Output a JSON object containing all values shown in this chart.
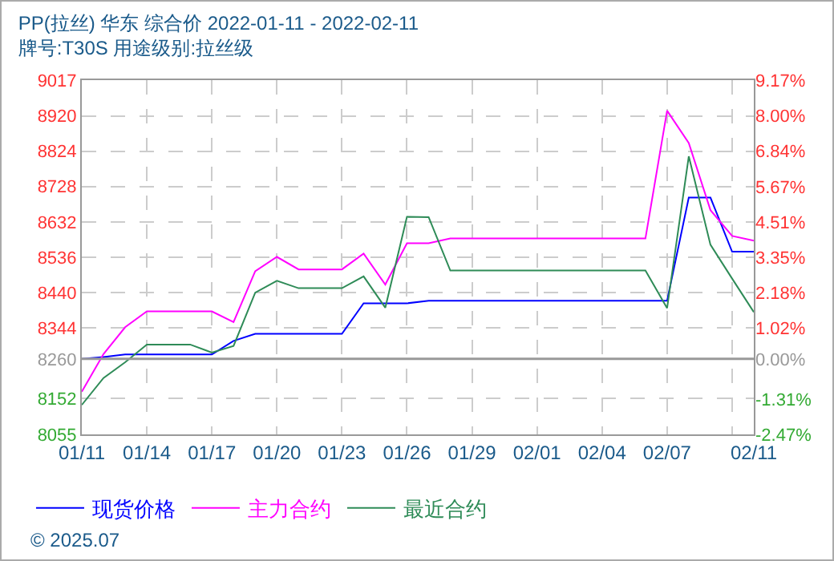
{
  "chart_data": {
    "type": "line",
    "title": "PP(拉丝) 华东 综合价 2022-01-11 - 2022-02-11",
    "subtitle": "牌号:T30S 用途级别:拉丝级",
    "x": [
      "2022-01-11",
      "2022-01-12",
      "2022-01-13",
      "2022-01-14",
      "2022-01-15",
      "2022-01-16",
      "2022-01-17",
      "2022-01-18",
      "2022-01-19",
      "2022-01-20",
      "2022-01-21",
      "2022-01-22",
      "2022-01-23",
      "2022-01-24",
      "2022-01-25",
      "2022-01-26",
      "2022-01-27",
      "2022-01-28",
      "2022-01-29",
      "2022-01-30",
      "2022-01-31",
      "2022-02-01",
      "2022-02-02",
      "2022-02-03",
      "2022-02-04",
      "2022-02-05",
      "2022-02-06",
      "2022-02-07",
      "2022-02-08",
      "2022-02-09",
      "2022-02-10",
      "2022-02-11"
    ],
    "series": [
      {
        "name": "现货价格",
        "color": "#0000ff",
        "values": [
          8260,
          8265,
          8272,
          8272,
          8272,
          8272,
          8272,
          8309,
          8328,
          8328,
          8328,
          8328,
          8328,
          8411,
          8411,
          8411,
          8418,
          8418,
          8418,
          8418,
          8418,
          8418,
          8418,
          8418,
          8418,
          8418,
          8418,
          8418,
          8698,
          8698,
          8551,
          8551
        ]
      },
      {
        "name": "主力合约",
        "color": "#ff00ff",
        "values": [
          8171,
          8273,
          8346,
          8389,
          8389,
          8389,
          8389,
          8360,
          8498,
          8537,
          8503,
          8503,
          8503,
          8546,
          8462,
          8574,
          8574,
          8587,
          8587,
          8587,
          8587,
          8587,
          8587,
          8587,
          8587,
          8587,
          8587,
          8934,
          8846,
          8664,
          8594,
          8581
        ]
      },
      {
        "name": "最近合约",
        "color": "#2e8b57",
        "values": [
          8135,
          8208,
          8251,
          8299,
          8299,
          8299,
          8277,
          8295,
          8440,
          8472,
          8452,
          8452,
          8452,
          8484,
          8399,
          8646,
          8645,
          8500,
          8500,
          8500,
          8500,
          8500,
          8500,
          8500,
          8500,
          8500,
          8500,
          8398,
          8810,
          8570,
          8478,
          8387
        ]
      }
    ],
    "xlim": [
      "2022-01-11",
      "2022-02-11"
    ],
    "xticks": [
      {
        "value": "2022-01-11",
        "label": "01/11"
      },
      {
        "value": "2022-01-14",
        "label": "01/14"
      },
      {
        "value": "2022-01-17",
        "label": "01/17"
      },
      {
        "value": "2022-01-20",
        "label": "01/20"
      },
      {
        "value": "2022-01-23",
        "label": "01/23"
      },
      {
        "value": "2022-01-26",
        "label": "01/26"
      },
      {
        "value": "2022-01-29",
        "label": "01/29"
      },
      {
        "value": "2022-02-01",
        "label": "02/01"
      },
      {
        "value": "2022-02-04",
        "label": "02/04"
      },
      {
        "value": "2022-02-07",
        "label": "02/07"
      },
      {
        "value": "2022-02-10",
        "label": null
      },
      {
        "value": "2022-02-11",
        "label": "02/11"
      }
    ],
    "ylim": [
      8055,
      9017
    ],
    "yticks": [
      8055,
      8152,
      8260,
      8344,
      8440,
      8536,
      8632,
      8728,
      8824,
      8920,
      9017
    ],
    "y2lim": [
      -2.47,
      9.17
    ],
    "y2ticks": [
      {
        "value": -2.47,
        "label": "-2.47%"
      },
      {
        "value": -1.31,
        "label": "-1.31%"
      },
      {
        "value": 0,
        "label": "0.00%"
      },
      {
        "value": 1.02,
        "label": "1.02%"
      },
      {
        "value": 2.18,
        "label": "2.18%"
      },
      {
        "value": 3.35,
        "label": "3.35%"
      },
      {
        "value": 4.51,
        "label": "4.51%"
      },
      {
        "value": 5.67,
        "label": "5.67%"
      },
      {
        "value": 6.84,
        "label": "6.84%"
      },
      {
        "value": 8.0,
        "label": "8.00%"
      },
      {
        "value": 9.17,
        "label": "9.17%"
      }
    ],
    "ref_lines": [
      {
        "axis": "y",
        "value": 8260,
        "color": "#999999"
      }
    ],
    "grid": true,
    "legend": "bottom",
    "marker": "none",
    "line_style": "solid",
    "annotations": [
      "© 2025.07"
    ]
  }
}
